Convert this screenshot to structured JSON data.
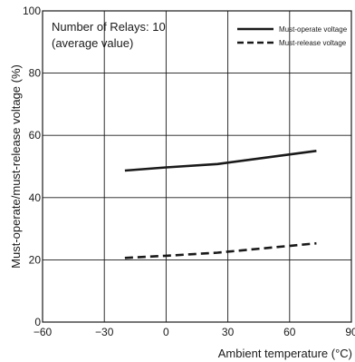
{
  "chart_data": {
    "type": "line",
    "annotation_lines": [
      "Number of Relays: 10",
      "(average value)"
    ],
    "xlabel": "Ambient temperature (°C)",
    "ylabel": "Must-operate/must-release voltage (%)",
    "xlim": [
      -60,
      90
    ],
    "ylim": [
      0,
      100
    ],
    "x_ticks": [
      "−60",
      "−30",
      "0",
      "30",
      "60",
      "90"
    ],
    "y_ticks": [
      "0",
      "20",
      "40",
      "60",
      "80",
      "100"
    ],
    "grid": true,
    "legend_position": "top-right",
    "series": [
      {
        "name": "Must-operate voltage",
        "style": "solid",
        "color": "#1a1a1a",
        "points": [
          [
            -20,
            48.7
          ],
          [
            0,
            49.7
          ],
          [
            25,
            50.8
          ],
          [
            73,
            55.0
          ]
        ]
      },
      {
        "name": "Must-release voltage",
        "style": "dashed",
        "color": "#1a1a1a",
        "points": [
          [
            -20,
            20.6
          ],
          [
            0,
            21.3
          ],
          [
            25,
            22.3
          ],
          [
            73,
            25.3
          ]
        ]
      }
    ]
  }
}
